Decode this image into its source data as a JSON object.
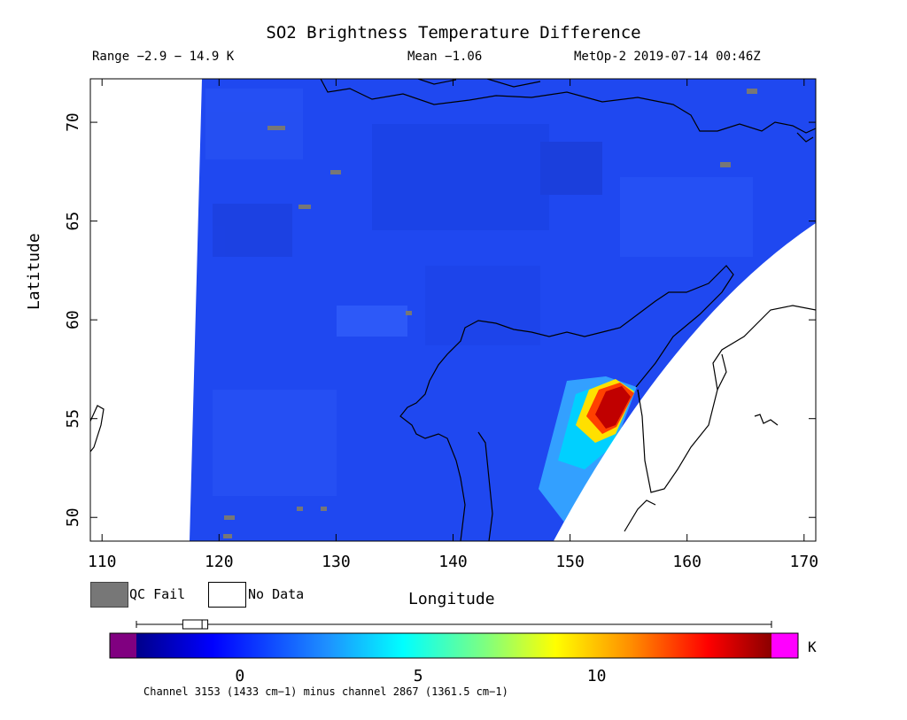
{
  "title": "SO2 Brightness Temperature Difference",
  "range_text": "Range −2.9 − 14.9 K",
  "mean_text": "Mean −1.06",
  "satellite_text": "MetOp-2 2019-07-14 00:46Z",
  "xlabel": "Longitude",
  "ylabel": "Latitude",
  "x_ticks": [
    "110",
    "120",
    "130",
    "140",
    "150",
    "160",
    "170"
  ],
  "y_ticks": [
    "50",
    "55",
    "60",
    "65",
    "70"
  ],
  "lon_range": [
    109,
    171
  ],
  "lat_range": [
    48.8,
    72.2
  ],
  "legend": {
    "qc_fail": "QC Fail",
    "no_data": "No Data"
  },
  "colorbar": {
    "unit": "K",
    "ticks": [
      "0",
      "5",
      "10"
    ],
    "range": [
      -2.9,
      14.9
    ],
    "box_range": [
      -1.6,
      -0.9
    ],
    "mean_marker": -1.06
  },
  "footer": "Channel 3153 (1433 cm−1) minus channel 2867 (1361.5 cm−1)",
  "colors": {
    "background_field": "#1f48f0",
    "qc_fail": "#777777",
    "below_range": "#800080",
    "above_range": "#ff00ff",
    "plume_peak": "#c00000"
  }
}
